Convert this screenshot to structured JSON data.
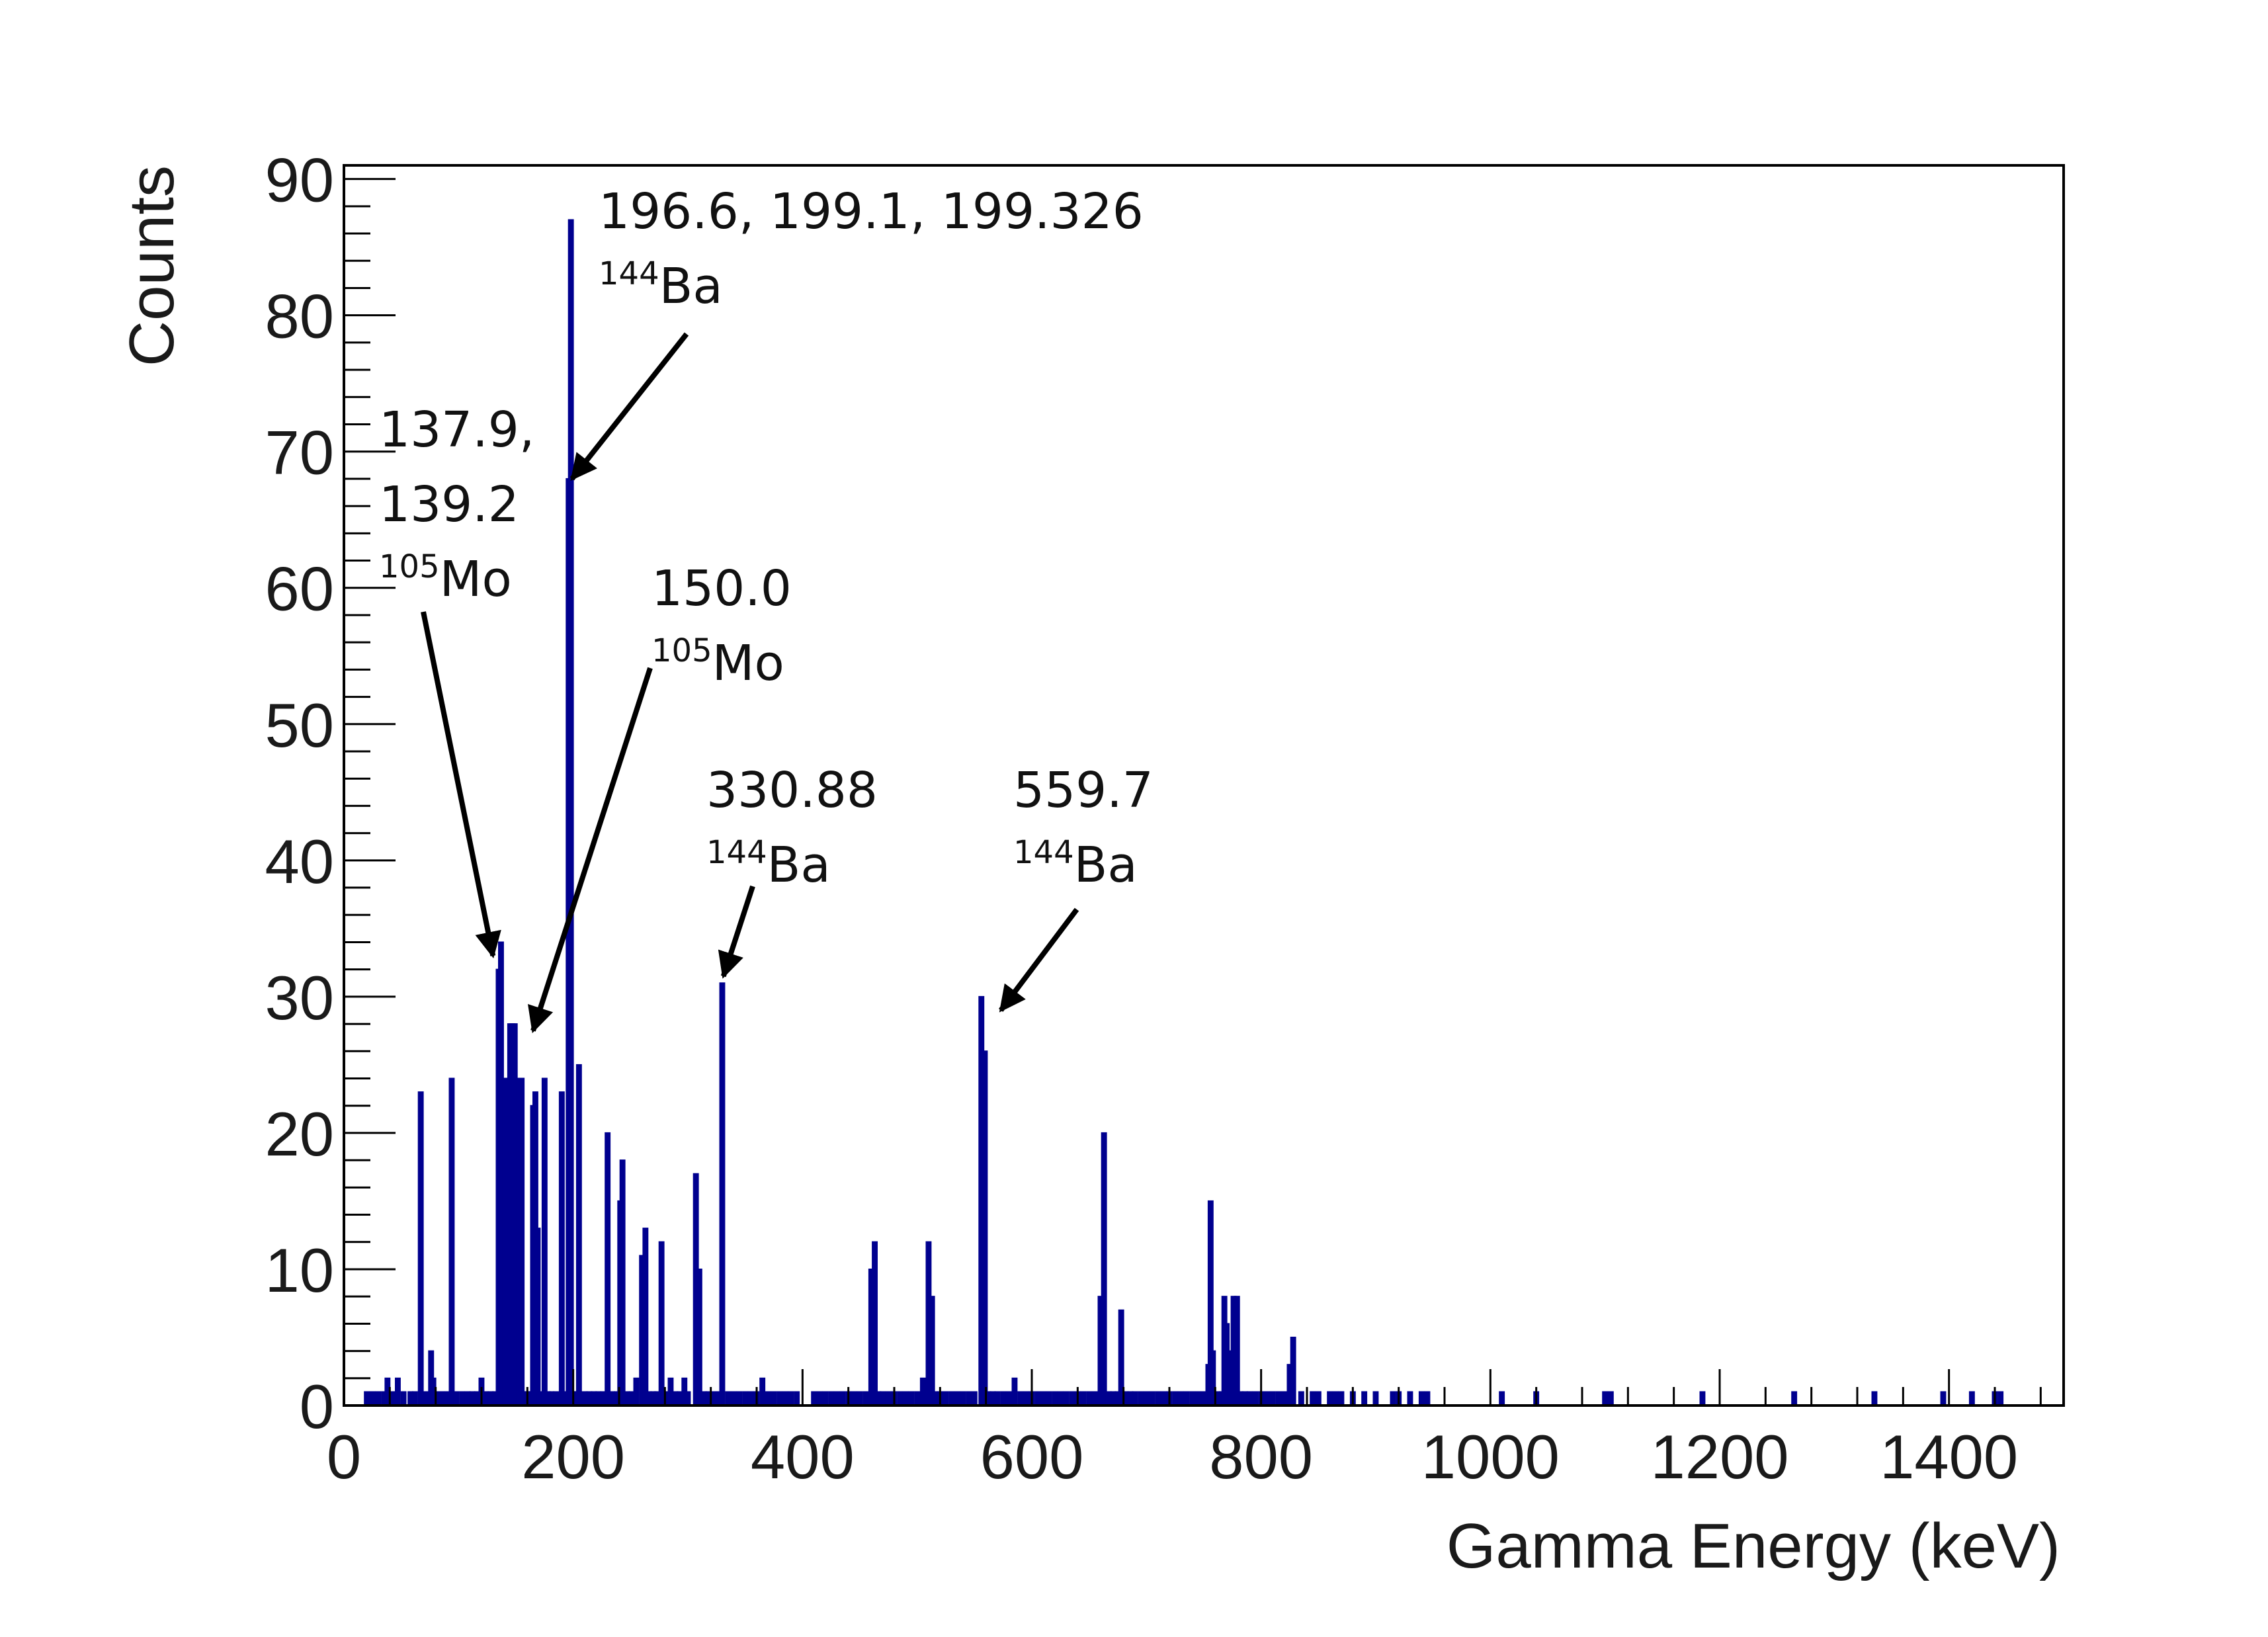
{
  "chart_data": {
    "type": "bar",
    "xlabel": "Gamma Energy (keV)",
    "ylabel": "Counts",
    "xlim": [
      0,
      1500
    ],
    "ylim": [
      0,
      91
    ],
    "x_ticks": [
      0,
      200,
      400,
      600,
      800,
      1000,
      1200,
      1400
    ],
    "y_ticks": [
      0,
      10,
      20,
      30,
      40,
      50,
      60,
      70,
      80,
      90
    ],
    "bar_color": "#00008f",
    "grid": false,
    "legend": "none",
    "series": [
      {
        "name": "Counts",
        "points": [
          [
            20,
            1
          ],
          [
            25,
            1
          ],
          [
            30,
            1
          ],
          [
            35,
            1
          ],
          [
            38,
            2
          ],
          [
            43,
            1
          ],
          [
            47,
            2
          ],
          [
            52,
            1
          ],
          [
            58,
            1
          ],
          [
            62,
            1
          ],
          [
            67,
            23
          ],
          [
            72,
            1
          ],
          [
            76,
            4
          ],
          [
            78,
            2
          ],
          [
            80,
            1
          ],
          [
            85,
            1
          ],
          [
            90,
            1
          ],
          [
            94,
            24
          ],
          [
            98,
            1
          ],
          [
            103,
            1
          ],
          [
            108,
            1
          ],
          [
            112,
            1
          ],
          [
            116,
            1
          ],
          [
            120,
            2
          ],
          [
            124,
            1
          ],
          [
            128,
            1
          ],
          [
            132,
            1
          ],
          [
            135,
            32
          ],
          [
            137,
            34
          ],
          [
            139,
            24
          ],
          [
            141,
            24
          ],
          [
            143,
            24
          ],
          [
            145,
            28
          ],
          [
            147,
            28
          ],
          [
            149,
            28
          ],
          [
            151,
            24
          ],
          [
            153,
            24
          ],
          [
            155,
            24
          ],
          [
            157,
            1
          ],
          [
            160,
            1
          ],
          [
            163,
            1
          ],
          [
            165,
            22
          ],
          [
            167,
            23
          ],
          [
            169,
            13
          ],
          [
            171,
            1
          ],
          [
            175,
            24
          ],
          [
            178,
            1
          ],
          [
            181,
            1
          ],
          [
            185,
            1
          ],
          [
            190,
            23
          ],
          [
            193,
            1
          ],
          [
            196,
            68
          ],
          [
            198,
            87
          ],
          [
            200,
            1
          ],
          [
            203,
            1
          ],
          [
            205,
            25
          ],
          [
            210,
            1
          ],
          [
            214,
            1
          ],
          [
            218,
            1
          ],
          [
            222,
            1
          ],
          [
            226,
            1
          ],
          [
            230,
            20
          ],
          [
            234,
            1
          ],
          [
            238,
            1
          ],
          [
            241,
            15
          ],
          [
            243,
            18
          ],
          [
            247,
            1
          ],
          [
            251,
            1
          ],
          [
            255,
            2
          ],
          [
            260,
            11
          ],
          [
            263,
            13
          ],
          [
            266,
            1
          ],
          [
            270,
            1
          ],
          [
            273,
            1
          ],
          [
            277,
            12
          ],
          [
            281,
            1
          ],
          [
            285,
            2
          ],
          [
            289,
            1
          ],
          [
            293,
            1
          ],
          [
            297,
            2
          ],
          [
            300,
            1
          ],
          [
            307,
            17
          ],
          [
            310,
            10
          ],
          [
            314,
            1
          ],
          [
            318,
            1
          ],
          [
            322,
            1
          ],
          [
            327,
            1
          ],
          [
            330,
            31
          ],
          [
            335,
            1
          ],
          [
            340,
            1
          ],
          [
            345,
            1
          ],
          [
            350,
            1
          ],
          [
            355,
            1
          ],
          [
            360,
            1
          ],
          [
            365,
            2
          ],
          [
            370,
            1
          ],
          [
            375,
            1
          ],
          [
            380,
            1
          ],
          [
            385,
            1
          ],
          [
            390,
            1
          ],
          [
            395,
            1
          ],
          [
            410,
            1
          ],
          [
            415,
            1
          ],
          [
            420,
            1
          ],
          [
            425,
            1
          ],
          [
            430,
            1
          ],
          [
            435,
            1
          ],
          [
            440,
            1
          ],
          [
            445,
            1
          ],
          [
            450,
            1
          ],
          [
            455,
            1
          ],
          [
            460,
            10
          ],
          [
            463,
            12
          ],
          [
            466,
            1
          ],
          [
            470,
            1
          ],
          [
            475,
            1
          ],
          [
            480,
            1
          ],
          [
            485,
            1
          ],
          [
            490,
            1
          ],
          [
            495,
            1
          ],
          [
            500,
            1
          ],
          [
            505,
            2
          ],
          [
            510,
            12
          ],
          [
            513,
            8
          ],
          [
            516,
            1
          ],
          [
            520,
            1
          ],
          [
            525,
            1
          ],
          [
            530,
            1
          ],
          [
            535,
            1
          ],
          [
            540,
            1
          ],
          [
            545,
            1
          ],
          [
            550,
            1
          ],
          [
            556,
            30
          ],
          [
            559,
            26
          ],
          [
            562,
            1
          ],
          [
            566,
            1
          ],
          [
            570,
            1
          ],
          [
            575,
            1
          ],
          [
            580,
            1
          ],
          [
            585,
            2
          ],
          [
            590,
            1
          ],
          [
            595,
            1
          ],
          [
            600,
            1
          ],
          [
            605,
            1
          ],
          [
            610,
            1
          ],
          [
            615,
            1
          ],
          [
            620,
            1
          ],
          [
            625,
            1
          ],
          [
            630,
            1
          ],
          [
            635,
            1
          ],
          [
            640,
            1
          ],
          [
            645,
            1
          ],
          [
            650,
            1
          ],
          [
            655,
            1
          ],
          [
            660,
            8
          ],
          [
            663,
            20
          ],
          [
            667,
            1
          ],
          [
            671,
            1
          ],
          [
            675,
            1
          ],
          [
            678,
            7
          ],
          [
            682,
            1
          ],
          [
            686,
            1
          ],
          [
            690,
            1
          ],
          [
            695,
            1
          ],
          [
            700,
            1
          ],
          [
            705,
            1
          ],
          [
            710,
            1
          ],
          [
            715,
            1
          ],
          [
            720,
            1
          ],
          [
            725,
            1
          ],
          [
            730,
            1
          ],
          [
            735,
            1
          ],
          [
            740,
            1
          ],
          [
            745,
            1
          ],
          [
            750,
            1
          ],
          [
            754,
            3
          ],
          [
            756,
            15
          ],
          [
            758,
            4
          ],
          [
            762,
            1
          ],
          [
            766,
            1
          ],
          [
            768,
            8
          ],
          [
            770,
            6
          ],
          [
            772,
            4
          ],
          [
            776,
            8
          ],
          [
            779,
            8
          ],
          [
            782,
            1
          ],
          [
            786,
            1
          ],
          [
            790,
            1
          ],
          [
            795,
            1
          ],
          [
            800,
            1
          ],
          [
            805,
            1
          ],
          [
            810,
            1
          ],
          [
            815,
            1
          ],
          [
            820,
            1
          ],
          [
            825,
            3
          ],
          [
            828,
            5
          ],
          [
            835,
            1
          ],
          [
            845,
            1
          ],
          [
            850,
            1
          ],
          [
            860,
            1
          ],
          [
            865,
            1
          ],
          [
            870,
            1
          ],
          [
            880,
            1
          ],
          [
            890,
            1
          ],
          [
            900,
            1
          ],
          [
            915,
            1
          ],
          [
            920,
            1
          ],
          [
            930,
            1
          ],
          [
            940,
            1
          ],
          [
            945,
            1
          ],
          [
            1010,
            1
          ],
          [
            1040,
            1
          ],
          [
            1100,
            1
          ],
          [
            1105,
            1
          ],
          [
            1185,
            1
          ],
          [
            1265,
            1
          ],
          [
            1335,
            1
          ],
          [
            1395,
            1
          ],
          [
            1420,
            1
          ],
          [
            1440,
            1
          ],
          [
            1445,
            1
          ]
        ]
      }
    ],
    "annotations": [
      {
        "lines": [
          "196.6, 199.1, 199.326"
        ],
        "nuclide_mass": "144",
        "nuclide_symbol": "Ba",
        "target": [
          199,
          68
        ]
      },
      {
        "lines": [
          "137.9,",
          "139.2"
        ],
        "nuclide_mass": "105",
        "nuclide_symbol": "Mo",
        "target": [
          130,
          33
        ]
      },
      {
        "lines": [
          "150.0"
        ],
        "nuclide_mass": "105",
        "nuclide_symbol": "Mo",
        "target": [
          165,
          27.5
        ]
      },
      {
        "lines": [
          "330.88"
        ],
        "nuclide_mass": "144",
        "nuclide_symbol": "Ba",
        "target": [
          331,
          31.5
        ]
      },
      {
        "lines": [
          "559.7"
        ],
        "nuclide_mass": "144",
        "nuclide_symbol": "Ba",
        "target": [
          573,
          29
        ]
      }
    ]
  }
}
